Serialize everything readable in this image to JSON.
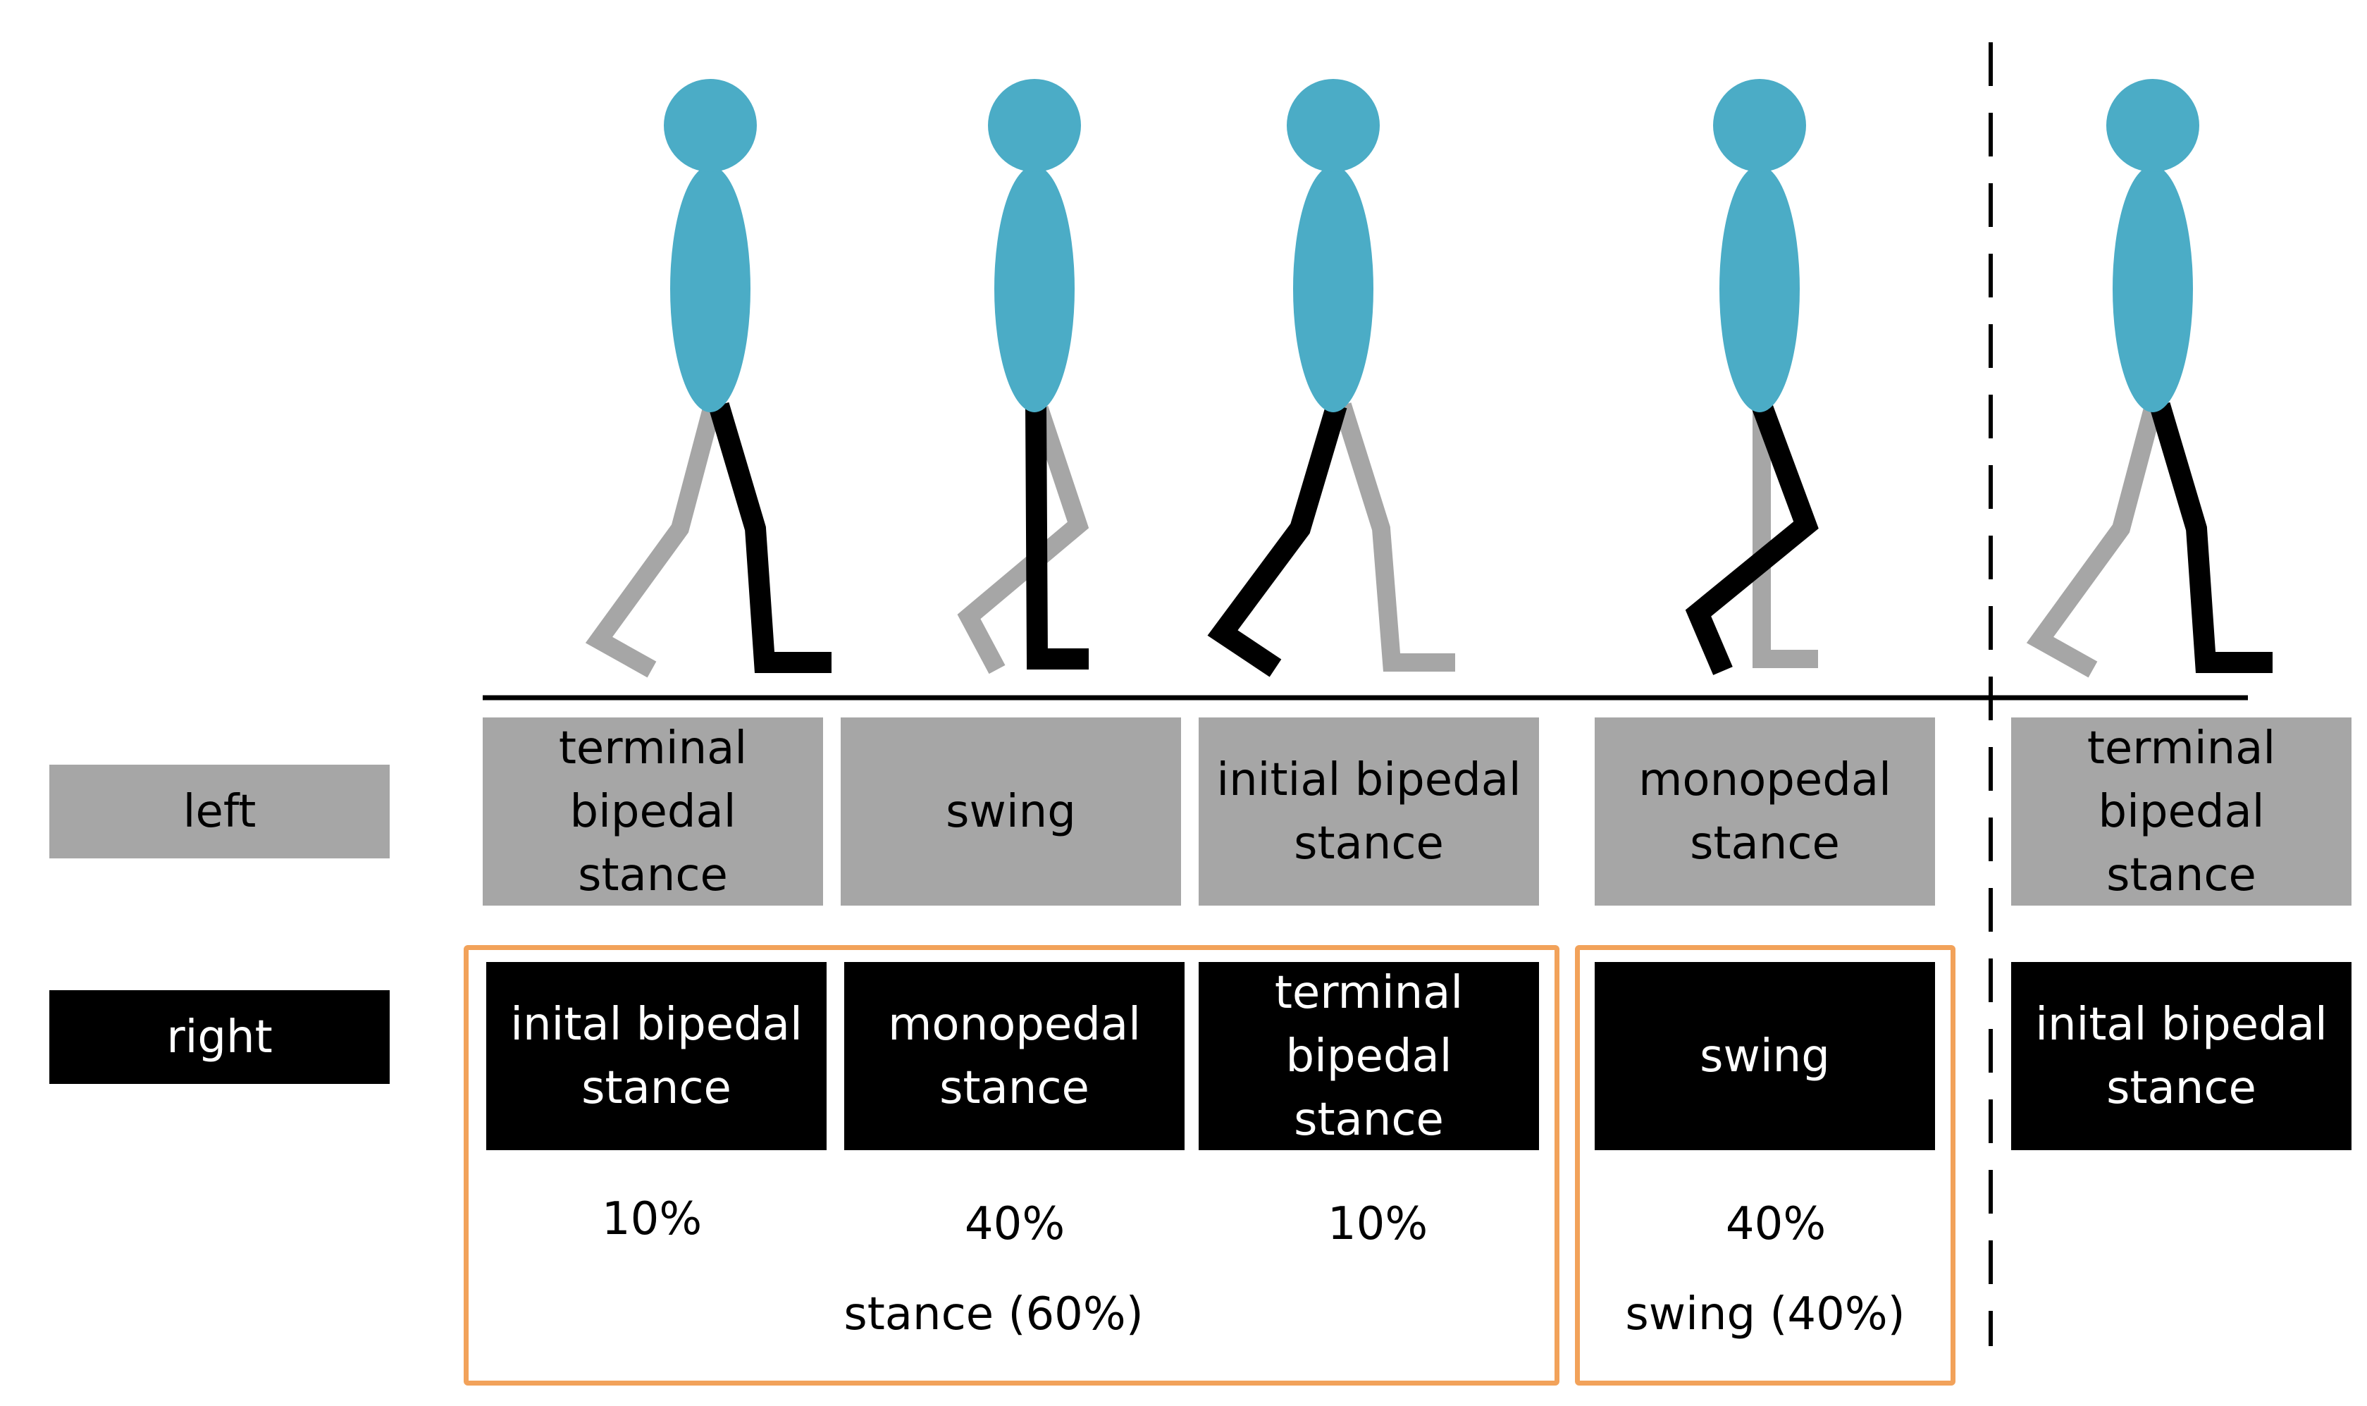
{
  "colors": {
    "left_leg": "#a6a6a6",
    "right_leg": "#000000",
    "body": "#4bacc6",
    "phase_frame": "#f2a25a"
  },
  "figures": [
    {
      "label": "figure-1",
      "left_leg": "back",
      "right_leg": "front"
    },
    {
      "label": "figure-2",
      "left_leg": "swing",
      "right_leg": "stance"
    },
    {
      "label": "figure-3",
      "left_leg": "back",
      "right_leg": "front-lifted"
    },
    {
      "label": "figure-4",
      "left_leg": "stance",
      "right_leg": "swing"
    },
    {
      "label": "figure-5",
      "left_leg": "back",
      "right_leg": "front"
    }
  ],
  "rows": {
    "left_label": "left",
    "right_label": "right"
  },
  "left_phases": [
    "terminal\nbipedal\nstance",
    "swing",
    "initial bipedal\nstance",
    "monopedal\nstance",
    "terminal\nbipedal\nstance"
  ],
  "right_phases": [
    "inital bipedal\nstance",
    "monopedal\nstance",
    "terminal\nbipedal\nstance",
    "swing",
    "inital bipedal\nstance"
  ],
  "percentages": [
    "10%",
    "40%",
    "10%",
    "40%"
  ],
  "groups": {
    "stance": "stance (60%)",
    "swing": "swing (40%)"
  }
}
